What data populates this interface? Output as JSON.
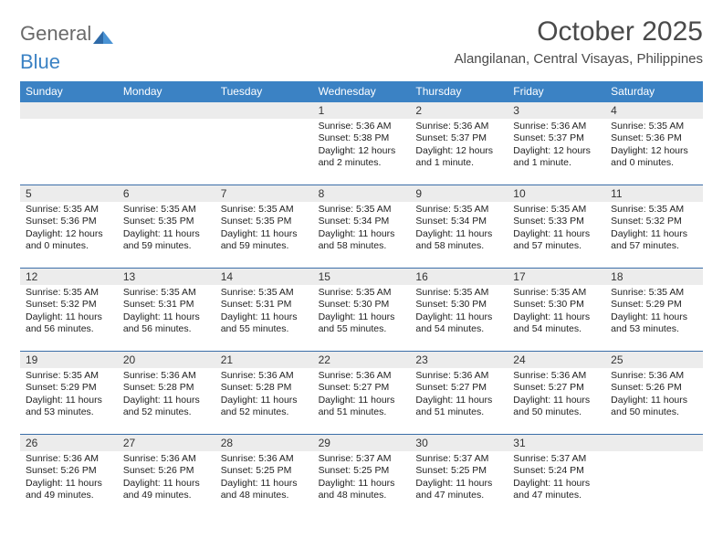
{
  "logo": {
    "text1": "General",
    "text2": "Blue"
  },
  "title": "October 2025",
  "location": "Alangilanan, Central Visayas, Philippines",
  "colors": {
    "header_bg": "#3b82c4",
    "header_text": "#ffffff",
    "week_divider": "#3b6ea8",
    "daynum_bg": "#ececec",
    "text": "#222222",
    "title_text": "#4a4a4a"
  },
  "weekdays": [
    "Sunday",
    "Monday",
    "Tuesday",
    "Wednesday",
    "Thursday",
    "Friday",
    "Saturday"
  ],
  "weeks": [
    [
      {
        "blank": true
      },
      {
        "blank": true
      },
      {
        "blank": true
      },
      {
        "n": "1",
        "sunrise": "5:36 AM",
        "sunset": "5:38 PM",
        "daylight": "12 hours and 2 minutes."
      },
      {
        "n": "2",
        "sunrise": "5:36 AM",
        "sunset": "5:37 PM",
        "daylight": "12 hours and 1 minute."
      },
      {
        "n": "3",
        "sunrise": "5:36 AM",
        "sunset": "5:37 PM",
        "daylight": "12 hours and 1 minute."
      },
      {
        "n": "4",
        "sunrise": "5:35 AM",
        "sunset": "5:36 PM",
        "daylight": "12 hours and 0 minutes."
      }
    ],
    [
      {
        "n": "5",
        "sunrise": "5:35 AM",
        "sunset": "5:36 PM",
        "daylight": "12 hours and 0 minutes."
      },
      {
        "n": "6",
        "sunrise": "5:35 AM",
        "sunset": "5:35 PM",
        "daylight": "11 hours and 59 minutes."
      },
      {
        "n": "7",
        "sunrise": "5:35 AM",
        "sunset": "5:35 PM",
        "daylight": "11 hours and 59 minutes."
      },
      {
        "n": "8",
        "sunrise": "5:35 AM",
        "sunset": "5:34 PM",
        "daylight": "11 hours and 58 minutes."
      },
      {
        "n": "9",
        "sunrise": "5:35 AM",
        "sunset": "5:34 PM",
        "daylight": "11 hours and 58 minutes."
      },
      {
        "n": "10",
        "sunrise": "5:35 AM",
        "sunset": "5:33 PM",
        "daylight": "11 hours and 57 minutes."
      },
      {
        "n": "11",
        "sunrise": "5:35 AM",
        "sunset": "5:32 PM",
        "daylight": "11 hours and 57 minutes."
      }
    ],
    [
      {
        "n": "12",
        "sunrise": "5:35 AM",
        "sunset": "5:32 PM",
        "daylight": "11 hours and 56 minutes."
      },
      {
        "n": "13",
        "sunrise": "5:35 AM",
        "sunset": "5:31 PM",
        "daylight": "11 hours and 56 minutes."
      },
      {
        "n": "14",
        "sunrise": "5:35 AM",
        "sunset": "5:31 PM",
        "daylight": "11 hours and 55 minutes."
      },
      {
        "n": "15",
        "sunrise": "5:35 AM",
        "sunset": "5:30 PM",
        "daylight": "11 hours and 55 minutes."
      },
      {
        "n": "16",
        "sunrise": "5:35 AM",
        "sunset": "5:30 PM",
        "daylight": "11 hours and 54 minutes."
      },
      {
        "n": "17",
        "sunrise": "5:35 AM",
        "sunset": "5:30 PM",
        "daylight": "11 hours and 54 minutes."
      },
      {
        "n": "18",
        "sunrise": "5:35 AM",
        "sunset": "5:29 PM",
        "daylight": "11 hours and 53 minutes."
      }
    ],
    [
      {
        "n": "19",
        "sunrise": "5:35 AM",
        "sunset": "5:29 PM",
        "daylight": "11 hours and 53 minutes."
      },
      {
        "n": "20",
        "sunrise": "5:36 AM",
        "sunset": "5:28 PM",
        "daylight": "11 hours and 52 minutes."
      },
      {
        "n": "21",
        "sunrise": "5:36 AM",
        "sunset": "5:28 PM",
        "daylight": "11 hours and 52 minutes."
      },
      {
        "n": "22",
        "sunrise": "5:36 AM",
        "sunset": "5:27 PM",
        "daylight": "11 hours and 51 minutes."
      },
      {
        "n": "23",
        "sunrise": "5:36 AM",
        "sunset": "5:27 PM",
        "daylight": "11 hours and 51 minutes."
      },
      {
        "n": "24",
        "sunrise": "5:36 AM",
        "sunset": "5:27 PM",
        "daylight": "11 hours and 50 minutes."
      },
      {
        "n": "25",
        "sunrise": "5:36 AM",
        "sunset": "5:26 PM",
        "daylight": "11 hours and 50 minutes."
      }
    ],
    [
      {
        "n": "26",
        "sunrise": "5:36 AM",
        "sunset": "5:26 PM",
        "daylight": "11 hours and 49 minutes."
      },
      {
        "n": "27",
        "sunrise": "5:36 AM",
        "sunset": "5:26 PM",
        "daylight": "11 hours and 49 minutes."
      },
      {
        "n": "28",
        "sunrise": "5:36 AM",
        "sunset": "5:25 PM",
        "daylight": "11 hours and 48 minutes."
      },
      {
        "n": "29",
        "sunrise": "5:37 AM",
        "sunset": "5:25 PM",
        "daylight": "11 hours and 48 minutes."
      },
      {
        "n": "30",
        "sunrise": "5:37 AM",
        "sunset": "5:25 PM",
        "daylight": "11 hours and 47 minutes."
      },
      {
        "n": "31",
        "sunrise": "5:37 AM",
        "sunset": "5:24 PM",
        "daylight": "11 hours and 47 minutes."
      },
      {
        "blank": true
      }
    ]
  ],
  "labels": {
    "sunrise_prefix": "Sunrise: ",
    "sunset_prefix": "Sunset: ",
    "daylight_prefix": "Daylight: "
  }
}
